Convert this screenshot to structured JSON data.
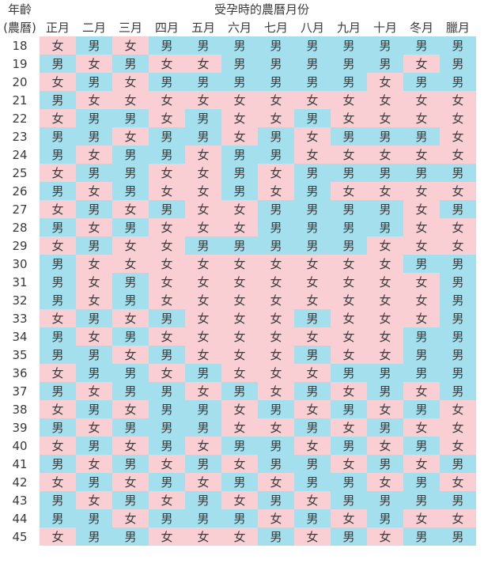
{
  "corner": {
    "line1": "年齡",
    "line2": "(農曆)"
  },
  "title": "受孕時的農曆月份",
  "months": [
    "正月",
    "二月",
    "三月",
    "四月",
    "五月",
    "六月",
    "七月",
    "八月",
    "九月",
    "十月",
    "冬月",
    "臘月"
  ],
  "colors": {
    "男": "#a4dfed",
    "女": "#f9cfd4"
  },
  "rows": [
    {
      "age": "18",
      "cells": [
        "女",
        "男",
        "女",
        "男",
        "男",
        "男",
        "男",
        "男",
        "男",
        "男",
        "男",
        "男"
      ]
    },
    {
      "age": "19",
      "cells": [
        "男",
        "女",
        "男",
        "女",
        "女",
        "男",
        "男",
        "男",
        "男",
        "男",
        "女",
        "男"
      ]
    },
    {
      "age": "20",
      "cells": [
        "女",
        "男",
        "女",
        "男",
        "男",
        "男",
        "男",
        "男",
        "男",
        "女",
        "男",
        "男"
      ]
    },
    {
      "age": "21",
      "cells": [
        "男",
        "女",
        "女",
        "女",
        "女",
        "女",
        "女",
        "女",
        "女",
        "女",
        "女",
        "女"
      ]
    },
    {
      "age": "22",
      "cells": [
        "女",
        "男",
        "男",
        "女",
        "男",
        "女",
        "女",
        "男",
        "女",
        "女",
        "女",
        "女"
      ]
    },
    {
      "age": "23",
      "cells": [
        "男",
        "男",
        "女",
        "男",
        "男",
        "女",
        "男",
        "女",
        "男",
        "男",
        "男",
        "女"
      ]
    },
    {
      "age": "24",
      "cells": [
        "男",
        "女",
        "男",
        "男",
        "女",
        "男",
        "男",
        "女",
        "女",
        "女",
        "女",
        "女"
      ]
    },
    {
      "age": "25",
      "cells": [
        "女",
        "男",
        "男",
        "女",
        "女",
        "男",
        "女",
        "男",
        "男",
        "男",
        "男",
        "男"
      ]
    },
    {
      "age": "26",
      "cells": [
        "男",
        "女",
        "男",
        "女",
        "女",
        "男",
        "女",
        "男",
        "女",
        "女",
        "女",
        "女"
      ]
    },
    {
      "age": "27",
      "cells": [
        "女",
        "男",
        "女",
        "男",
        "女",
        "女",
        "男",
        "男",
        "男",
        "男",
        "女",
        "男"
      ]
    },
    {
      "age": "28",
      "cells": [
        "男",
        "女",
        "男",
        "女",
        "女",
        "女",
        "男",
        "男",
        "男",
        "男",
        "女",
        "女"
      ]
    },
    {
      "age": "29",
      "cells": [
        "女",
        "男",
        "女",
        "女",
        "男",
        "男",
        "男",
        "男",
        "男",
        "女",
        "女",
        "女"
      ]
    },
    {
      "age": "30",
      "cells": [
        "男",
        "女",
        "女",
        "女",
        "女",
        "女",
        "女",
        "女",
        "女",
        "女",
        "男",
        "男"
      ]
    },
    {
      "age": "31",
      "cells": [
        "男",
        "女",
        "男",
        "女",
        "女",
        "女",
        "女",
        "女",
        "女",
        "女",
        "女",
        "男"
      ]
    },
    {
      "age": "32",
      "cells": [
        "男",
        "女",
        "男",
        "女",
        "女",
        "女",
        "女",
        "女",
        "女",
        "女",
        "女",
        "男"
      ]
    },
    {
      "age": "33",
      "cells": [
        "女",
        "男",
        "女",
        "男",
        "女",
        "女",
        "女",
        "男",
        "女",
        "女",
        "女",
        "男"
      ]
    },
    {
      "age": "34",
      "cells": [
        "男",
        "女",
        "男",
        "女",
        "女",
        "女",
        "女",
        "女",
        "女",
        "女",
        "男",
        "男"
      ]
    },
    {
      "age": "35",
      "cells": [
        "男",
        "男",
        "女",
        "男",
        "女",
        "女",
        "女",
        "男",
        "女",
        "女",
        "男",
        "男"
      ]
    },
    {
      "age": "36",
      "cells": [
        "女",
        "男",
        "男",
        "女",
        "男",
        "女",
        "女",
        "女",
        "男",
        "男",
        "男",
        "男"
      ]
    },
    {
      "age": "37",
      "cells": [
        "男",
        "女",
        "男",
        "男",
        "女",
        "男",
        "女",
        "男",
        "女",
        "男",
        "女",
        "男"
      ]
    },
    {
      "age": "38",
      "cells": [
        "女",
        "男",
        "女",
        "男",
        "男",
        "女",
        "男",
        "女",
        "男",
        "女",
        "男",
        "女"
      ]
    },
    {
      "age": "39",
      "cells": [
        "男",
        "女",
        "男",
        "男",
        "男",
        "女",
        "女",
        "男",
        "女",
        "男",
        "女",
        "女"
      ]
    },
    {
      "age": "40",
      "cells": [
        "女",
        "男",
        "女",
        "男",
        "女",
        "男",
        "男",
        "女",
        "男",
        "女",
        "男",
        "女"
      ]
    },
    {
      "age": "41",
      "cells": [
        "男",
        "女",
        "男",
        "女",
        "男",
        "女",
        "男",
        "男",
        "女",
        "男",
        "女",
        "男"
      ]
    },
    {
      "age": "42",
      "cells": [
        "女",
        "男",
        "女",
        "男",
        "女",
        "男",
        "女",
        "男",
        "男",
        "女",
        "男",
        "女"
      ]
    },
    {
      "age": "43",
      "cells": [
        "男",
        "女",
        "男",
        "女",
        "男",
        "女",
        "男",
        "女",
        "男",
        "男",
        "男",
        "男"
      ]
    },
    {
      "age": "44",
      "cells": [
        "男",
        "男",
        "女",
        "男",
        "男",
        "男",
        "女",
        "男",
        "女",
        "男",
        "女",
        "女"
      ]
    },
    {
      "age": "45",
      "cells": [
        "女",
        "男",
        "男",
        "女",
        "女",
        "女",
        "男",
        "女",
        "男",
        "女",
        "男",
        "男"
      ]
    }
  ]
}
